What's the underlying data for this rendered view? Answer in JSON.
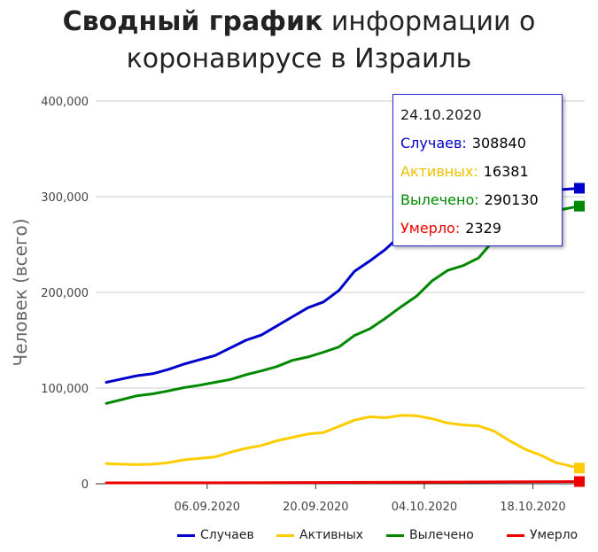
{
  "title": {
    "bold": "Сводный график",
    "line1_rest": " информации о",
    "line2": "коронавирусе в Израиль"
  },
  "chart_data": {
    "type": "line",
    "ylabel": "Человек (всего)",
    "ylim": [
      0,
      400000
    ],
    "yticks": [
      0,
      100000,
      200000,
      300000,
      400000
    ],
    "ytick_labels": [
      "0",
      "100,000",
      "200,000",
      "300,000",
      "400,000"
    ],
    "x_start": "2020-08-24",
    "x_end": "2020-10-24",
    "xtick_labels": [
      "06.09.2020",
      "20.09.2020",
      "04.10.2020",
      "18.10.2020"
    ],
    "xtick_dates": [
      "2020-09-06",
      "2020-09-20",
      "2020-10-04",
      "2020-10-18"
    ],
    "grid": true,
    "legend_position": "bottom",
    "series": [
      {
        "name": "Случаев",
        "color": "#0000cc",
        "dates": [
          "2020-08-24",
          "2020-08-26",
          "2020-08-28",
          "2020-08-30",
          "2020-09-01",
          "2020-09-03",
          "2020-09-05",
          "2020-09-07",
          "2020-09-09",
          "2020-09-11",
          "2020-09-13",
          "2020-09-15",
          "2020-09-17",
          "2020-09-19",
          "2020-09-21",
          "2020-09-23",
          "2020-09-25",
          "2020-09-27",
          "2020-09-29",
          "2020-10-01",
          "2020-10-03",
          "2020-10-05",
          "2020-10-07",
          "2020-10-09",
          "2020-10-11",
          "2020-10-13",
          "2020-10-15",
          "2020-10-17",
          "2020-10-19",
          "2020-10-21",
          "2020-10-24"
        ],
        "values": [
          106000,
          109500,
          113000,
          115000,
          119500,
          125000,
          129500,
          134000,
          142000,
          150000,
          155500,
          165000,
          174500,
          184000,
          190000,
          202000,
          222000,
          233000,
          245000,
          260000,
          269000,
          276500,
          282000,
          287500,
          291000,
          295000,
          299000,
          302500,
          305000,
          307000,
          308840
        ]
      },
      {
        "name": "Активных",
        "color": "#ffcc00",
        "dates": [
          "2020-08-24",
          "2020-08-26",
          "2020-08-28",
          "2020-08-30",
          "2020-09-01",
          "2020-09-03",
          "2020-09-05",
          "2020-09-07",
          "2020-09-09",
          "2020-09-11",
          "2020-09-13",
          "2020-09-15",
          "2020-09-17",
          "2020-09-19",
          "2020-09-21",
          "2020-09-23",
          "2020-09-25",
          "2020-09-27",
          "2020-09-29",
          "2020-10-01",
          "2020-10-03",
          "2020-10-05",
          "2020-10-07",
          "2020-10-09",
          "2020-10-11",
          "2020-10-13",
          "2020-10-15",
          "2020-10-17",
          "2020-10-19",
          "2020-10-21",
          "2020-10-24"
        ],
        "values": [
          21000,
          20500,
          20000,
          20500,
          22000,
          25000,
          26500,
          28000,
          33000,
          37000,
          40000,
          45000,
          48500,
          52000,
          53500,
          60000,
          66500,
          70000,
          69000,
          71500,
          71000,
          68000,
          63500,
          61500,
          60500,
          55000,
          45000,
          36000,
          30000,
          22000,
          16381
        ]
      },
      {
        "name": "Вылечено",
        "color": "#008800",
        "dates": [
          "2020-08-24",
          "2020-08-26",
          "2020-08-28",
          "2020-08-30",
          "2020-09-01",
          "2020-09-03",
          "2020-09-05",
          "2020-09-07",
          "2020-09-09",
          "2020-09-11",
          "2020-09-13",
          "2020-09-15",
          "2020-09-17",
          "2020-09-19",
          "2020-09-21",
          "2020-09-23",
          "2020-09-25",
          "2020-09-27",
          "2020-09-29",
          "2020-10-01",
          "2020-10-03",
          "2020-10-05",
          "2020-10-07",
          "2020-10-09",
          "2020-10-11",
          "2020-10-13",
          "2020-10-15",
          "2020-10-17",
          "2020-10-19",
          "2020-10-21",
          "2020-10-24"
        ],
        "values": [
          84000,
          88000,
          92000,
          94000,
          97000,
          100500,
          103000,
          106000,
          109000,
          114000,
          118000,
          122500,
          129000,
          132500,
          137500,
          143000,
          155000,
          162000,
          173000,
          185000,
          196000,
          212000,
          223000,
          228000,
          236000,
          255000,
          265000,
          272000,
          280000,
          285500,
          290130
        ]
      },
      {
        "name": "Умерло",
        "color": "#ee0000",
        "dates": [
          "2020-08-24",
          "2020-09-05",
          "2020-09-19",
          "2020-10-03",
          "2020-10-17",
          "2020-10-24"
        ],
        "values": [
          900,
          1000,
          1250,
          1600,
          2050,
          2329
        ]
      }
    ]
  },
  "tooltip": {
    "date": "24.10.2020",
    "rows": [
      {
        "label": "Случаев:",
        "value": "308840",
        "color": "#0000cc"
      },
      {
        "label": "Активных:",
        "value": "16381",
        "color": "#ffcc00"
      },
      {
        "label": "Вылечено:",
        "value": "290130",
        "color": "#008800"
      },
      {
        "label": "Умерло:",
        "value": "2329",
        "color": "#ee0000"
      }
    ]
  },
  "legend": {
    "items": [
      {
        "label": "Случаев",
        "color": "#0000cc"
      },
      {
        "label": "Активных",
        "color": "#ffcc00"
      },
      {
        "label": "Вылечено",
        "color": "#008800"
      },
      {
        "label": "Умерло",
        "color": "#ee0000"
      }
    ]
  }
}
